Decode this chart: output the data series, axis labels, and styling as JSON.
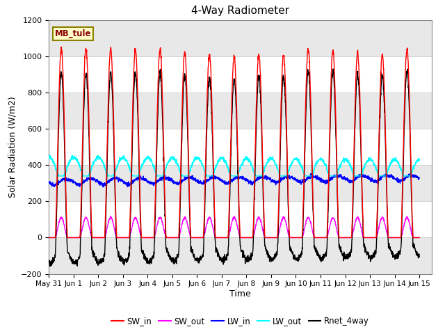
{
  "title": "4-Way Radiometer",
  "xlabel": "Time",
  "ylabel": "Solar Radiation (W/m2)",
  "ylim": [
    -200,
    1200
  ],
  "xlim_start": 0,
  "xlim_end": 15.5,
  "station_label": "MB_tule",
  "tick_labels": [
    "May 31",
    "Jun 1",
    "Jun 2",
    "Jun 3",
    "Jun 4",
    "Jun 5",
    "Jun 6",
    "Jun 7",
    "Jun 8",
    "Jun 9",
    "Jun 10",
    "Jun 11",
    "Jun 12",
    "Jun 13",
    "Jun 14",
    "Jun 15"
  ],
  "yticks": [
    -200,
    0,
    200,
    400,
    600,
    800,
    1000,
    1200
  ],
  "series": {
    "SW_in": {
      "color": "#FF0000",
      "lw": 1.0
    },
    "SW_out": {
      "color": "#FF00FF",
      "lw": 1.0
    },
    "LW_in": {
      "color": "#0000FF",
      "lw": 1.0
    },
    "LW_out": {
      "color": "#00FFFF",
      "lw": 1.0
    },
    "Rnet_4way": {
      "color": "#000000",
      "lw": 1.0
    }
  },
  "bg_color": "#E8E8E8",
  "plot_bg": "#FFFFFF",
  "grid_color": "#CCCCCC",
  "n_days": 15,
  "samples_per_day": 144
}
